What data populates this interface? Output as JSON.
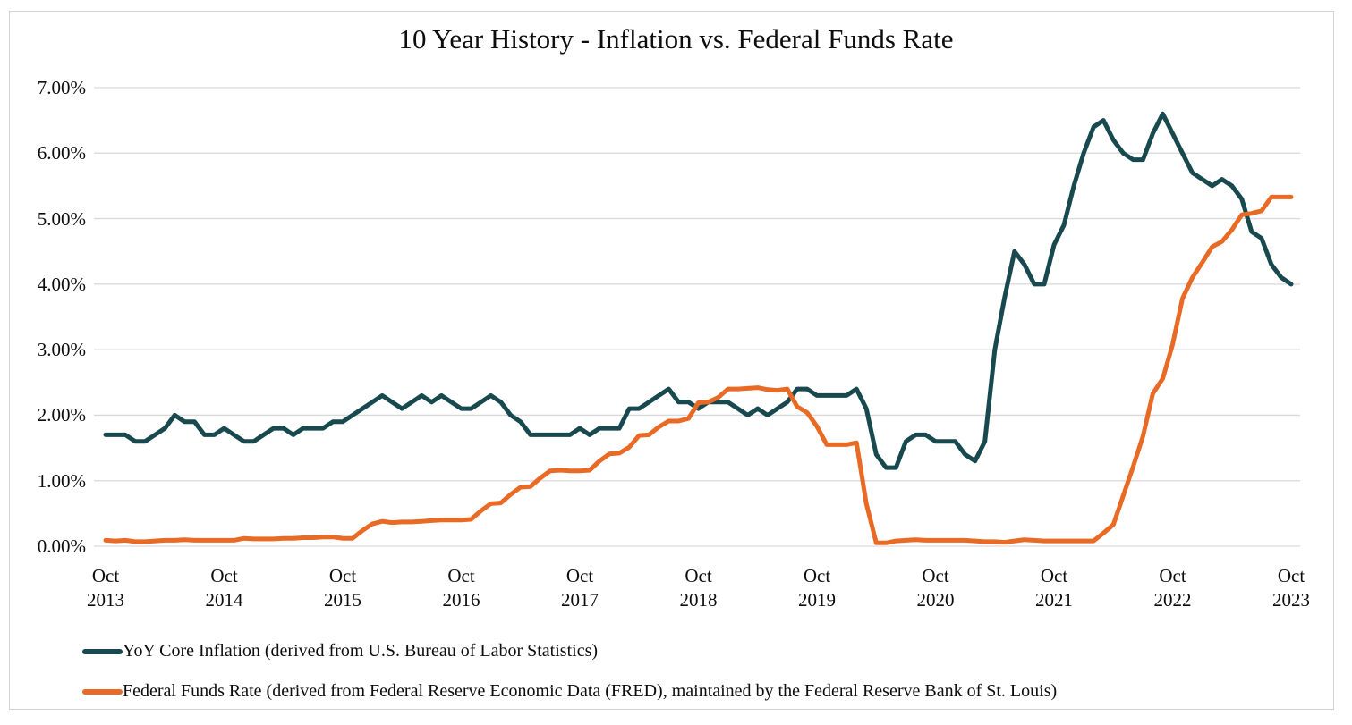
{
  "title": "10 Year History - Inflation vs. Federal Funds Rate",
  "colors": {
    "inflation_line": "#17494e",
    "fed_funds_line": "#e86a24",
    "gridline": "#d9d9d9",
    "frame_border": "#d2d2d2",
    "text": "#0d0d0d"
  },
  "y_axis": {
    "tick_labels": [
      "7.00%",
      "6.00%",
      "5.00%",
      "4.00%",
      "3.00%",
      "2.00%",
      "1.00%",
      "0.00%"
    ],
    "tick_values": [
      7,
      6,
      5,
      4,
      3,
      2,
      1,
      0
    ]
  },
  "x_axis": {
    "tick_labels": [
      {
        "month": "Oct",
        "year": "2013"
      },
      {
        "month": "Oct",
        "year": "2014"
      },
      {
        "month": "Oct",
        "year": "2015"
      },
      {
        "month": "Oct",
        "year": "2016"
      },
      {
        "month": "Oct",
        "year": "2017"
      },
      {
        "month": "Oct",
        "year": "2018"
      },
      {
        "month": "Oct",
        "year": "2019"
      },
      {
        "month": "Oct",
        "year": "2020"
      },
      {
        "month": "Oct",
        "year": "2021"
      },
      {
        "month": "Oct",
        "year": "2022"
      },
      {
        "month": "Oct",
        "year": "2023"
      }
    ],
    "tick_month_indices": [
      0,
      12,
      24,
      36,
      48,
      60,
      72,
      84,
      96,
      108,
      120
    ]
  },
  "legend": [
    {
      "series": "inflation",
      "label": "YoY Core Inflation (derived from U.S. Bureau of Labor Statistics)",
      "color": "#17494e"
    },
    {
      "series": "fed_funds",
      "label": "Federal Funds Rate (derived from Federal Reserve Economic Data (FRED), maintained by the Federal Reserve Bank of St. Louis)",
      "color": "#e86a24"
    }
  ],
  "chart_data": {
    "type": "line",
    "title": "10 Year History - Inflation vs. Federal Funds Rate",
    "x_unit": "month",
    "x_start": "Oct 2013",
    "x_end": "Oct 2023",
    "x_tick_labels": [
      "Oct 2013",
      "Oct 2014",
      "Oct 2015",
      "Oct 2016",
      "Oct 2017",
      "Oct 2018",
      "Oct 2019",
      "Oct 2020",
      "Oct 2021",
      "Oct 2022",
      "Oct 2023"
    ],
    "ylim": [
      0,
      7
    ],
    "y_tick_step": 1,
    "y_format": "percent",
    "grid": "horizontal-only",
    "legend_position": "bottom-left",
    "series": [
      {
        "name": "YoY Core Inflation (derived from U.S. Bureau of Labor Statistics)",
        "color": "#17494e",
        "values": [
          1.7,
          1.7,
          1.7,
          1.6,
          1.6,
          1.7,
          1.8,
          2.0,
          1.9,
          1.9,
          1.7,
          1.7,
          1.8,
          1.7,
          1.6,
          1.6,
          1.7,
          1.8,
          1.8,
          1.7,
          1.8,
          1.8,
          1.8,
          1.9,
          1.9,
          2.0,
          2.1,
          2.2,
          2.3,
          2.2,
          2.1,
          2.2,
          2.3,
          2.2,
          2.3,
          2.2,
          2.1,
          2.1,
          2.2,
          2.3,
          2.2,
          2.0,
          1.9,
          1.7,
          1.7,
          1.7,
          1.7,
          1.7,
          1.8,
          1.7,
          1.8,
          1.8,
          1.8,
          2.1,
          2.1,
          2.2,
          2.3,
          2.4,
          2.2,
          2.2,
          2.1,
          2.2,
          2.2,
          2.2,
          2.1,
          2.0,
          2.1,
          2.0,
          2.1,
          2.2,
          2.4,
          2.4,
          2.3,
          2.3,
          2.3,
          2.3,
          2.4,
          2.1,
          1.4,
          1.2,
          1.2,
          1.6,
          1.7,
          1.7,
          1.6,
          1.6,
          1.6,
          1.4,
          1.3,
          1.6,
          3.0,
          3.8,
          4.5,
          4.3,
          4.0,
          4.0,
          4.6,
          4.9,
          5.5,
          6.0,
          6.4,
          6.5,
          6.2,
          6.0,
          5.9,
          5.9,
          6.3,
          6.6,
          6.3,
          6.0,
          5.7,
          5.6,
          5.5,
          5.6,
          5.5,
          5.3,
          4.8,
          4.7,
          4.3,
          4.1,
          4.0
        ]
      },
      {
        "name": "Federal Funds Rate (derived from Federal Reserve Economic Data (FRED), maintained by the Federal Reserve Bank of St. Louis)",
        "color": "#e86a24",
        "values": [
          0.09,
          0.08,
          0.09,
          0.07,
          0.07,
          0.08,
          0.09,
          0.09,
          0.1,
          0.09,
          0.09,
          0.09,
          0.09,
          0.09,
          0.12,
          0.11,
          0.11,
          0.11,
          0.12,
          0.12,
          0.13,
          0.13,
          0.14,
          0.14,
          0.12,
          0.12,
          0.24,
          0.34,
          0.38,
          0.36,
          0.37,
          0.37,
          0.38,
          0.39,
          0.4,
          0.4,
          0.4,
          0.41,
          0.54,
          0.65,
          0.66,
          0.79,
          0.9,
          0.91,
          1.04,
          1.15,
          1.16,
          1.15,
          1.15,
          1.16,
          1.3,
          1.41,
          1.42,
          1.51,
          1.69,
          1.7,
          1.82,
          1.91,
          1.91,
          1.95,
          2.19,
          2.2,
          2.27,
          2.4,
          2.4,
          2.41,
          2.42,
          2.39,
          2.38,
          2.4,
          2.13,
          2.04,
          1.83,
          1.55,
          1.55,
          1.55,
          1.58,
          0.65,
          0.05,
          0.05,
          0.08,
          0.09,
          0.1,
          0.09,
          0.09,
          0.09,
          0.09,
          0.09,
          0.08,
          0.07,
          0.07,
          0.06,
          0.08,
          0.1,
          0.09,
          0.08,
          0.08,
          0.08,
          0.08,
          0.08,
          0.08,
          0.2,
          0.33,
          0.77,
          1.21,
          1.68,
          2.33,
          2.56,
          3.08,
          3.78,
          4.1,
          4.33,
          4.57,
          4.65,
          4.83,
          5.06,
          5.08,
          5.12,
          5.33,
          5.33,
          5.33
        ]
      }
    ]
  }
}
